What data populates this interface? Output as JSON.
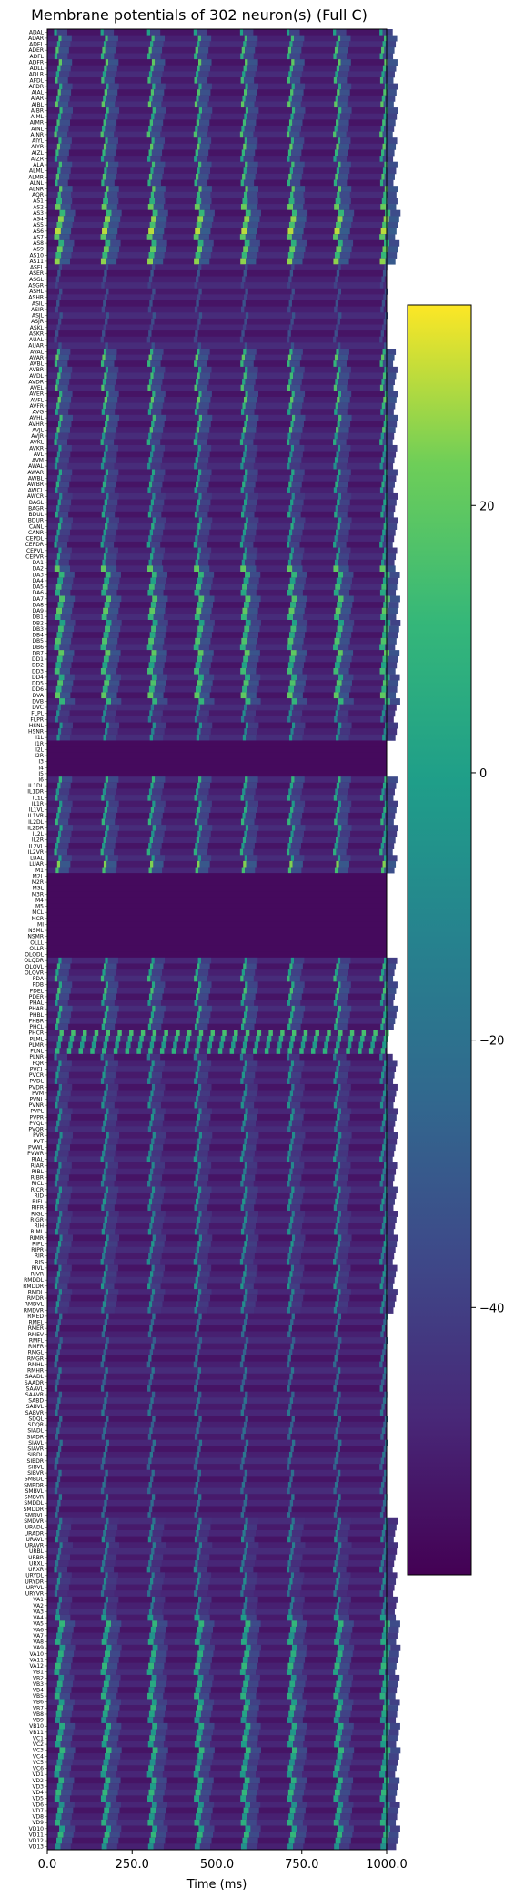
{
  "chart_data": {
    "type": "heatmap",
    "title": "Membrane potentials of 302 neuron(s) (Full C)",
    "xlabel": "Time (ms)",
    "xlim": [
      0,
      1000
    ],
    "x_ticks": [
      "0.0",
      "250.0",
      "500.0",
      "750.0",
      "1000.0"
    ],
    "x_tick_values": [
      0,
      250,
      500,
      750,
      1000
    ],
    "colormap": "viridis",
    "colorbar": {
      "range": [
        -60,
        35
      ],
      "ticks": [
        20,
        0,
        -20,
        -40
      ],
      "tick_labels": [
        "20",
        "0",
        "−20",
        "−40"
      ]
    },
    "colors": {
      "low": "#440154",
      "mid": "#21918c",
      "high": "#fde725"
    },
    "n_neurons": 302,
    "spike_period_ms": 137,
    "neuron_labels": [
      "ADAL",
      "ADAR",
      "ADEL",
      "ADER",
      "ADFL",
      "ADFR",
      "ADLL",
      "ADLR",
      "AFDL",
      "AFDR",
      "AIAL",
      "AIAR",
      "AIBL",
      "AIBR",
      "AIML",
      "AIMR",
      "AINL",
      "AINR",
      "AIYL",
      "AIYR",
      "AIZL",
      "AIZR",
      "ALA",
      "ALML",
      "ALMR",
      "ALNL",
      "ALNR",
      "AQR",
      "AS1",
      "AS2",
      "AS3",
      "AS4",
      "AS5",
      "AS6",
      "AS7",
      "AS8",
      "AS9",
      "AS10",
      "AS11",
      "ASEL",
      "ASER",
      "ASGL",
      "ASGR",
      "ASHL",
      "ASHR",
      "ASIL",
      "ASIR",
      "ASJL",
      "ASJR",
      "ASKL",
      "ASKR",
      "AUAL",
      "AUAR",
      "AVAL",
      "AVAR",
      "AVBL",
      "AVBR",
      "AVDL",
      "AVDR",
      "AVEL",
      "AVER",
      "AVFL",
      "AVFR",
      "AVG",
      "AVHL",
      "AVHR",
      "AVJL",
      "AVJR",
      "AVKL",
      "AVKR",
      "AVL",
      "AVM",
      "AWAL",
      "AWAR",
      "AWBL",
      "AWBR",
      "AWCL",
      "AWCR",
      "BAGL",
      "BAGR",
      "BDUL",
      "BDUR",
      "CANL",
      "CANR",
      "CEPDL",
      "CEPDR",
      "CEPVL",
      "CEPVR",
      "DA1",
      "DA2",
      "DA3",
      "DA4",
      "DA5",
      "DA6",
      "DA7",
      "DA8",
      "DA9",
      "DB1",
      "DB2",
      "DB3",
      "DB4",
      "DB5",
      "DB6",
      "DB7",
      "DD1",
      "DD2",
      "DD3",
      "DD4",
      "DD5",
      "DD6",
      "DVA",
      "DVB",
      "DVC",
      "FLPL",
      "FLPR",
      "HSNL",
      "HSNR",
      "I1L",
      "I1R",
      "I2L",
      "I2R",
      "I3",
      "I4",
      "I5",
      "I6",
      "IL1DL",
      "IL1DR",
      "IL1L",
      "IL1R",
      "IL1VL",
      "IL1VR",
      "IL2DL",
      "IL2DR",
      "IL2L",
      "IL2R",
      "IL2VL",
      "IL2VR",
      "LUAL",
      "LUAR",
      "M1",
      "M2L",
      "M2R",
      "M3L",
      "M3R",
      "M4",
      "M5",
      "MCL",
      "MCR",
      "MI",
      "NSML",
      "NSMR",
      "OLLL",
      "OLLR",
      "OLQDL",
      "OLQDR",
      "OLQVL",
      "OLQVR",
      "PDA",
      "PDB",
      "PDEL",
      "PDER",
      "PHAL",
      "PHAR",
      "PHBL",
      "PHBR",
      "PHCL",
      "PHCR",
      "PLML",
      "PLMR",
      "PLNL",
      "PLNR",
      "PQR",
      "PVCL",
      "PVCR",
      "PVDL",
      "PVDR",
      "PVM",
      "PVNL",
      "PVNR",
      "PVPL",
      "PVPR",
      "PVQL",
      "PVQR",
      "PVR",
      "PVT",
      "PVWL",
      "PVWR",
      "RIAL",
      "RIAR",
      "RIBL",
      "RIBR",
      "RICL",
      "RICR",
      "RID",
      "RIFL",
      "RIFR",
      "RIGL",
      "RIGR",
      "RIH",
      "RIML",
      "RIMR",
      "RIPL",
      "RIPR",
      "RIR",
      "RIS",
      "RIVL",
      "RIVR",
      "RMDDL",
      "RMDDR",
      "RMDL",
      "RMDR",
      "RMDVL",
      "RMDVR",
      "RMED",
      "RMEL",
      "RMER",
      "RMEV",
      "RMFL",
      "RMFR",
      "RMGL",
      "RMGR",
      "RMHL",
      "RMHR",
      "SAADL",
      "SAADR",
      "SAAVL",
      "SAAVR",
      "SABD",
      "SABVL",
      "SABVR",
      "SDQL",
      "SDQR",
      "SIADL",
      "SIADR",
      "SIAVL",
      "SIAVR",
      "SIBDL",
      "SIBDR",
      "SIBVL",
      "SIBVR",
      "SMBDL",
      "SMBDR",
      "SMBVL",
      "SMBVR",
      "SMDDL",
      "SMDDR",
      "SMDVL",
      "SMDVR",
      "URADL",
      "URADR",
      "URAVL",
      "URAVR",
      "URBL",
      "URBR",
      "URXL",
      "URXR",
      "URYDL",
      "URYDR",
      "URYVL",
      "URYVR",
      "VA1",
      "VA2",
      "VA3",
      "VA4",
      "VA5",
      "VA6",
      "VA7",
      "VA8",
      "VA9",
      "VA10",
      "VA11",
      "VA12",
      "VB1",
      "VB2",
      "VB3",
      "VB4",
      "VB5",
      "VB6",
      "VB7",
      "VB8",
      "VB9",
      "VB10",
      "VB11",
      "VC1",
      "VC2",
      "VC3",
      "VC4",
      "VC5",
      "VC6",
      "VD1",
      "VD2",
      "VD3",
      "VD4",
      "VD5",
      "VD6",
      "VD7",
      "VD8",
      "VD9",
      "VD10",
      "VD11",
      "VD12",
      "VD13"
    ],
    "activity_groups": [
      {
        "from": 0,
        "to": 27,
        "pattern": "burst",
        "level": 0.85
      },
      {
        "from": 28,
        "to": 38,
        "pattern": "strong",
        "level": 0.95
      },
      {
        "from": 39,
        "to": 52,
        "pattern": "weak",
        "level": 0.3
      },
      {
        "from": 53,
        "to": 66,
        "pattern": "burst",
        "level": 0.85
      },
      {
        "from": 67,
        "to": 88,
        "pattern": "burst",
        "level": 0.7
      },
      {
        "from": 89,
        "to": 111,
        "pattern": "strong",
        "level": 0.85
      },
      {
        "from": 112,
        "to": 117,
        "pattern": "burst",
        "level": 0.6
      },
      {
        "from": 118,
        "to": 123,
        "pattern": "silent",
        "level": 0.02
      },
      {
        "from": 124,
        "to": 137,
        "pattern": "burst",
        "level": 0.75
      },
      {
        "from": 138,
        "to": 139,
        "pattern": "burst",
        "level": 0.9
      },
      {
        "from": 140,
        "to": 153,
        "pattern": "silent",
        "level": 0.02
      },
      {
        "from": 154,
        "to": 165,
        "pattern": "burst",
        "level": 0.8
      },
      {
        "from": 166,
        "to": 169,
        "pattern": "fast",
        "level": 0.8
      },
      {
        "from": 170,
        "to": 212,
        "pattern": "burst",
        "level": 0.6
      },
      {
        "from": 213,
        "to": 246,
        "pattern": "weak",
        "level": 0.45
      },
      {
        "from": 247,
        "to": 262,
        "pattern": "burst",
        "level": 0.55
      },
      {
        "from": 263,
        "to": 301,
        "pattern": "strong",
        "level": 0.75
      }
    ]
  }
}
